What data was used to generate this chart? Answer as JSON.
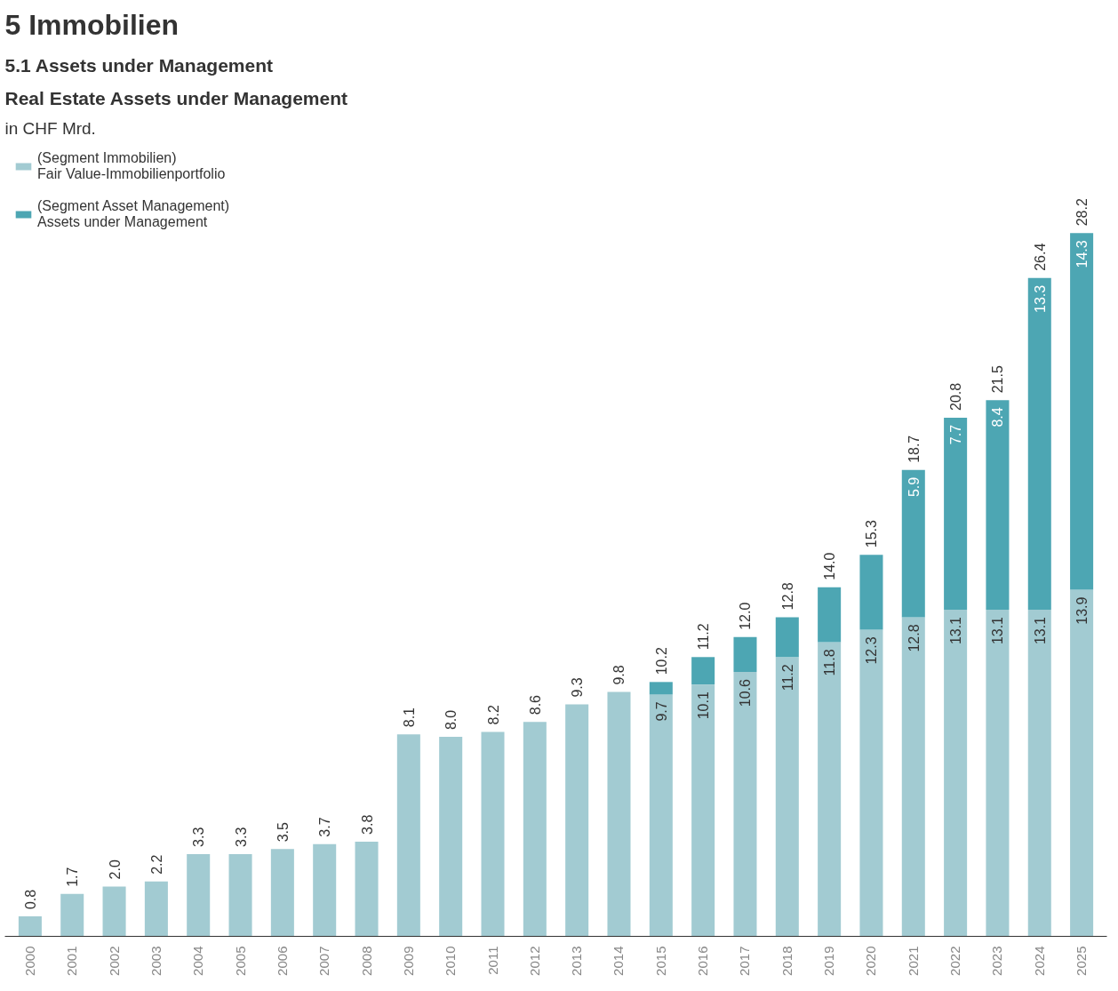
{
  "chart_data": {
    "type": "bar",
    "title": "Real Estate Assets under Management",
    "subtitle": "in CHF Mrd.",
    "annotations": [
      "5 Immobilien",
      "5.1 Assets under Management"
    ],
    "categories": [
      "2000",
      "2001",
      "2002",
      "2003",
      "2004",
      "2005",
      "2006",
      "2007",
      "2008",
      "2009",
      "2010",
      "2011",
      "2012",
      "2013",
      "2014",
      "2015",
      "2016",
      "2017",
      "2018",
      "2019",
      "2020",
      "2021",
      "2022",
      "2023",
      "2024",
      "2025"
    ],
    "stacked": true,
    "legend": "top left",
    "grid": false,
    "tick_labels": "x",
    "series": [
      {
        "name": "(Segment Immobilien)\nFair Value-Immobilienportfolio",
        "color": "#a2cbd2",
        "values": [
          0.8,
          1.7,
          2.0,
          2.2,
          3.3,
          3.3,
          3.5,
          3.7,
          3.8,
          8.1,
          8.0,
          8.2,
          8.6,
          9.3,
          9.8,
          9.7,
          10.1,
          10.6,
          11.2,
          11.8,
          12.3,
          12.8,
          13.1,
          13.1,
          13.1,
          13.9
        ],
        "value_labels": [
          "0.8",
          "1.7",
          "2.0",
          "2.2",
          "3.3",
          "3.3",
          "3.5",
          "3.7",
          "3.8",
          "8.1",
          "8.0",
          "8.2",
          "8.6",
          "9.3",
          "9.8",
          "9.7",
          "10.1",
          "10.6",
          "11.2",
          "11.8",
          "12.3",
          "12.8",
          "13.1",
          "13.1",
          "13.1",
          "13.9"
        ]
      },
      {
        "name": "(Segment Asset Management)\nAssets under Management",
        "color": "#4da6b3",
        "values": [
          null,
          null,
          null,
          null,
          null,
          null,
          null,
          null,
          null,
          null,
          null,
          null,
          null,
          null,
          null,
          0.5,
          1.1,
          1.4,
          1.6,
          2.2,
          3.0,
          5.9,
          7.7,
          8.4,
          13.3,
          14.3
        ],
        "value_labels": [
          null,
          null,
          null,
          null,
          null,
          null,
          null,
          null,
          null,
          null,
          null,
          null,
          null,
          null,
          null,
          null,
          null,
          null,
          null,
          null,
          null,
          "5.9",
          "7.7",
          "8.4",
          "13.3",
          "14.3"
        ]
      }
    ],
    "totals": [
      null,
      null,
      null,
      null,
      null,
      null,
      null,
      null,
      null,
      null,
      null,
      null,
      null,
      null,
      null,
      "10.2",
      "11.2",
      "12.0",
      "12.8",
      "14.0",
      "15.3",
      "18.7",
      "20.8",
      "21.5",
      "26.4",
      "28.2"
    ]
  }
}
